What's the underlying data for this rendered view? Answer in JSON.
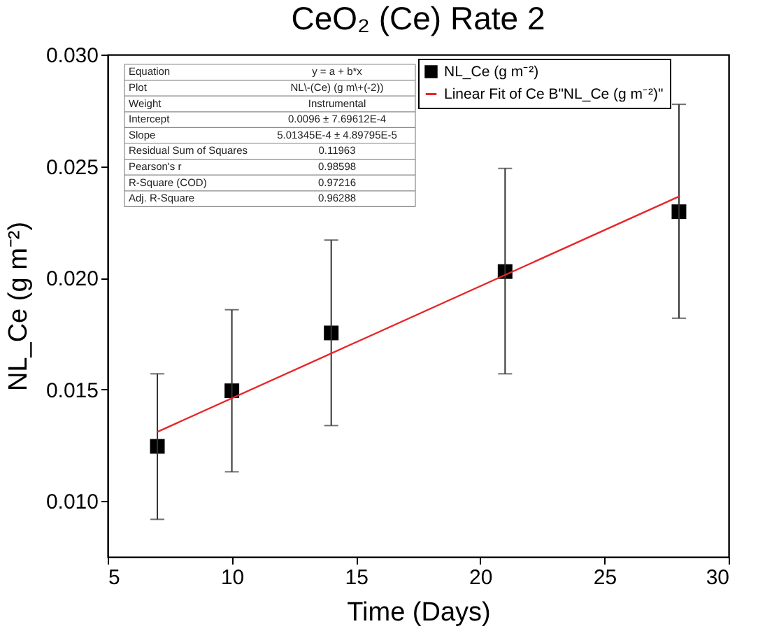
{
  "chart_data": {
    "type": "scatter",
    "title": "CeO₂ (Ce) Rate 2",
    "xlabel": "Time (Days)",
    "ylabel": "NL_Ce (g m⁻²)",
    "x": [
      7,
      10,
      14,
      21,
      28
    ],
    "series": [
      {
        "name": "NL_Ce (g m⁻²)",
        "color": "#000000",
        "marker": "square",
        "values": [
          0.01245,
          0.01494,
          0.01753,
          0.02028,
          0.02296
        ],
        "errors": [
          [
            0.00918,
            0.0157
          ],
          [
            0.01131,
            0.01857
          ],
          [
            0.01338,
            0.02169
          ],
          [
            0.0157,
            0.0249
          ],
          [
            0.01819,
            0.02777
          ]
        ]
      },
      {
        "name": "Linear Fit of Ce B\"NL_Ce (g m⁻²)\"",
        "color": "#e8262a",
        "type": "line",
        "x": [
          7,
          28
        ],
        "values": [
          0.0131,
          0.02364
        ]
      }
    ],
    "xlim": [
      5,
      30
    ],
    "xticks": [
      5,
      10,
      15,
      20,
      25,
      30
    ],
    "ylim": [
      0.0075,
      0.03
    ],
    "yticks": [
      {
        "value": 0.01,
        "label": "0.010"
      },
      {
        "value": 0.015,
        "label": "0.015"
      },
      {
        "value": 0.02,
        "label": "0.020"
      },
      {
        "value": 0.025,
        "label": "0.025"
      },
      {
        "value": 0.03,
        "label": "0.030"
      }
    ],
    "grid": false,
    "legend": "top right",
    "annotations": [
      "Equation",
      "y = a + b*x",
      "Plot",
      "NL\\-(Ce) (g m\\+(-2))",
      "Weight",
      "Instrumental",
      "Intercept",
      "0.0096 ± 7.69612E-4",
      "Slope",
      "5.01345E-4 ± 4.89795E-5",
      "Residual Sum of Squares",
      "0.11963",
      "Pearson's r",
      "0.98598",
      "R-Square (COD)",
      "0.97216",
      "Adj. R-Square",
      "0.96288"
    ]
  }
}
